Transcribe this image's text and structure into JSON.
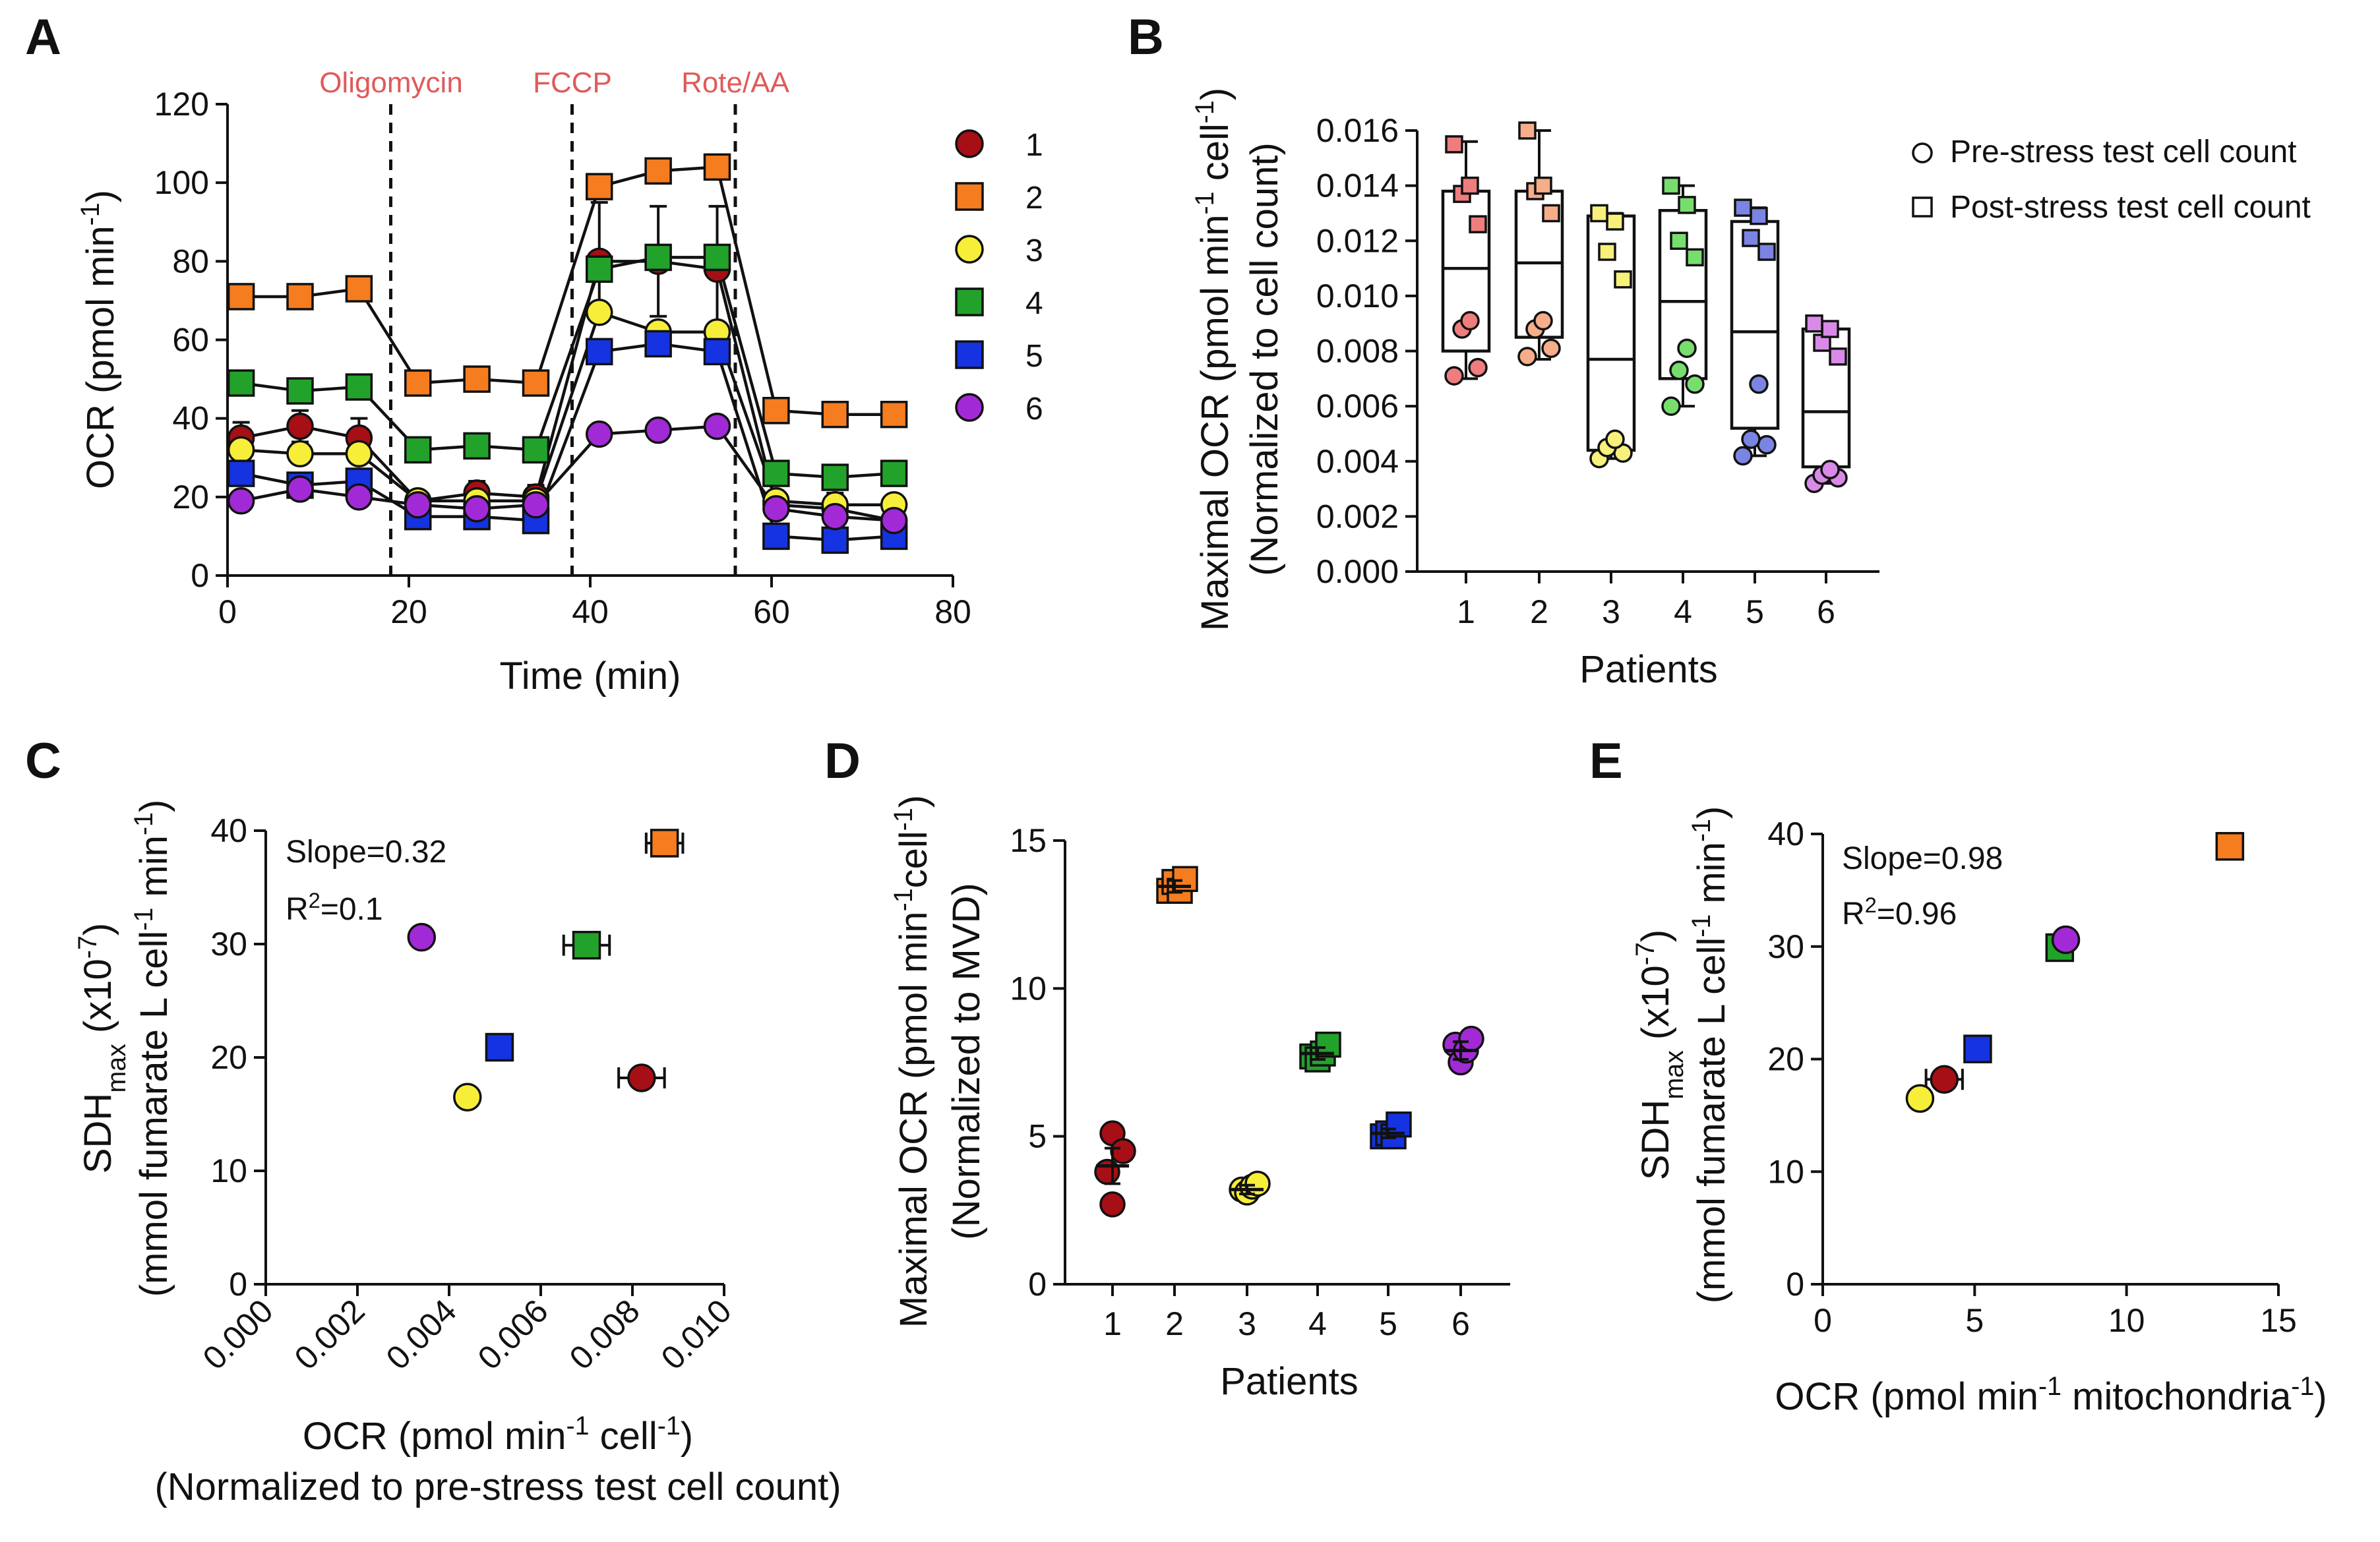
{
  "colors": {
    "1": "#a50f15",
    "2": "#f57c1f",
    "3": "#f7ee3a",
    "4": "#22a22a",
    "5": "#1533e0",
    "6": "#a12ad6",
    "light1": "#ee7d7d",
    "light2": "#f5ad8a",
    "light3": "#f7f07a",
    "light4": "#77de6e",
    "light5": "#7b84e3",
    "light6": "#d98ae8",
    "treatment": "#e05a5a"
  },
  "chart_data": [
    {
      "id": "A",
      "panel_letter": "A",
      "type": "line",
      "xlabel": "Time (min)",
      "ylabel_main": "OCR (pmol min",
      "ylabel_sup": "-1",
      "ylabel_end": ")",
      "xlim": [
        0,
        80
      ],
      "ylim": [
        0,
        120
      ],
      "xticks": [
        0,
        20,
        40,
        60,
        80
      ],
      "yticks": [
        0,
        20,
        40,
        60,
        80,
        100,
        120
      ],
      "treatments": [
        {
          "label": "Oligomycin",
          "x": 18
        },
        {
          "label": "FCCP",
          "x": 38
        },
        {
          "label": "Rote/AA",
          "x": 56
        }
      ],
      "x": [
        1.5,
        8,
        14.5,
        21,
        27.5,
        34,
        41,
        47.5,
        54,
        60.5,
        67,
        73.5
      ],
      "series": [
        {
          "name": "1",
          "marker": "circle",
          "values": [
            35,
            38,
            35,
            19,
            21,
            20,
            80,
            80,
            78,
            18,
            17,
            14
          ],
          "err": [
            4,
            4,
            5,
            2,
            3,
            3,
            15,
            14,
            16,
            3,
            4,
            4
          ]
        },
        {
          "name": "2",
          "marker": "square",
          "values": [
            71,
            71,
            73,
            49,
            50,
            49,
            99,
            103,
            104,
            42,
            41,
            41
          ],
          "err": [
            0,
            0,
            0,
            0,
            0,
            0,
            0,
            0,
            0,
            0,
            0,
            0
          ]
        },
        {
          "name": "3",
          "marker": "circle",
          "values": [
            32,
            31,
            31,
            19,
            19,
            19,
            67,
            62,
            62,
            19,
            18,
            18
          ],
          "err": [
            0,
            0,
            0,
            0,
            0,
            0,
            0,
            0,
            0,
            0,
            0,
            0
          ]
        },
        {
          "name": "4",
          "marker": "square",
          "values": [
            49,
            47,
            48,
            32,
            33,
            32,
            78,
            81,
            81,
            26,
            25,
            26
          ],
          "err": [
            0,
            0,
            0,
            0,
            0,
            0,
            0,
            0,
            0,
            0,
            0,
            0
          ]
        },
        {
          "name": "5",
          "marker": "square",
          "values": [
            26,
            23,
            24,
            15,
            15,
            14,
            57,
            59,
            57,
            10,
            9,
            10
          ],
          "err": [
            0,
            0,
            0,
            0,
            0,
            0,
            0,
            0,
            0,
            0,
            0,
            0
          ]
        },
        {
          "name": "6",
          "marker": "circle",
          "values": [
            19,
            22,
            20,
            18,
            17,
            18,
            36,
            37,
            38,
            17,
            15,
            14
          ],
          "err": [
            0,
            0,
            0,
            0,
            0,
            0,
            0,
            0,
            0,
            0,
            0,
            0
          ]
        }
      ]
    },
    {
      "id": "B",
      "panel_letter": "B",
      "type": "box",
      "xlabel": "Patients",
      "ylabel1_main": "Maximal OCR (pmol min",
      "ylabel1_sup1": "-1",
      "ylabel1_mid": " cell",
      "ylabel1_sup2": "-1",
      "ylabel1_end": ")",
      "ylabel2": "(Normalized to cell count)",
      "ylim": [
        0,
        0.016
      ],
      "yticks": [
        "0.000",
        "0.002",
        "0.004",
        "0.006",
        "0.008",
        "0.010",
        "0.012",
        "0.014",
        "0.016"
      ],
      "categories": [
        "1",
        "2",
        "3",
        "4",
        "5",
        "6"
      ],
      "legend": [
        "Pre-stress test cell count",
        "Post-stress test cell count"
      ],
      "boxes": [
        {
          "min": 0.007,
          "q1": 0.008,
          "median": 0.011,
          "q3": 0.0138,
          "max": 0.0156
        },
        {
          "min": 0.0077,
          "q1": 0.0085,
          "median": 0.0112,
          "q3": 0.0138,
          "max": 0.016
        },
        {
          "min": 0.0041,
          "q1": 0.0044,
          "median": 0.0077,
          "q3": 0.0129,
          "max": 0.013
        },
        {
          "min": 0.006,
          "q1": 0.007,
          "median": 0.0098,
          "q3": 0.0131,
          "max": 0.014
        },
        {
          "min": 0.0042,
          "q1": 0.0052,
          "median": 0.0087,
          "q3": 0.0127,
          "max": 0.0132
        },
        {
          "min": 0.0032,
          "q1": 0.0038,
          "median": 0.0058,
          "q3": 0.0088,
          "max": 0.009
        }
      ],
      "pre_points": [
        [
          0.0071,
          0.0074,
          0.0088,
          0.0091
        ],
        [
          0.0078,
          0.0081,
          0.0088,
          0.0091
        ],
        [
          0.0041,
          0.0043,
          0.0045,
          0.0048
        ],
        [
          0.006,
          0.0068,
          0.0073,
          0.0081
        ],
        [
          0.0042,
          0.0046,
          0.0048,
          0.0068
        ],
        [
          0.0032,
          0.0034,
          0.0035,
          0.0037
        ]
      ],
      "post_points": [
        [
          0.0126,
          0.0137,
          0.014,
          0.0155
        ],
        [
          0.013,
          0.0138,
          0.014,
          0.016
        ],
        [
          0.0106,
          0.0116,
          0.0127,
          0.013
        ],
        [
          0.0114,
          0.012,
          0.0133,
          0.014
        ],
        [
          0.0116,
          0.0121,
          0.0129,
          0.0132
        ],
        [
          0.0078,
          0.0083,
          0.0088,
          0.009
        ]
      ]
    },
    {
      "id": "C",
      "panel_letter": "C",
      "type": "scatter",
      "xlabel1_main": "OCR (pmol min",
      "xlabel1_sup1": "-1",
      "xlabel1_mid": " cell",
      "xlabel1_sup2": "-1",
      "xlabel1_end": ")",
      "xlabel2": "(Normalized to pre-stress test cell count)",
      "ylabel1_main": "SDH",
      "ylabel1_sub": "max",
      "ylabel1_mid": " (x10",
      "ylabel1_sup": "-7",
      "ylabel1_end": ")",
      "ylabel2_main": "(mmol fumarate L cell",
      "ylabel2_sup1": "-1",
      "ylabel2_mid": " min",
      "ylabel2_sup2": "-1",
      "ylabel2_end": ")",
      "xlim": [
        0,
        0.01
      ],
      "ylim": [
        0,
        40
      ],
      "xticks": [
        "0.000",
        "0.002",
        "0.004",
        "0.006",
        "0.008",
        "0.010"
      ],
      "yticks": [
        0,
        10,
        20,
        30,
        40
      ],
      "slope_text": "Slope=0.32",
      "r2_main": "R",
      "r2_sup": "2",
      "r2_end": "=0.1",
      "points": [
        {
          "patient": "1",
          "marker": "circle",
          "x": 0.0082,
          "y": 18.2,
          "xerr": 0.0005
        },
        {
          "patient": "2",
          "marker": "square",
          "x": 0.0087,
          "y": 38.9,
          "xerr": 0.0004
        },
        {
          "patient": "3",
          "marker": "circle",
          "x": 0.0044,
          "y": 16.5,
          "xerr": 0.0
        },
        {
          "patient": "4",
          "marker": "square",
          "x": 0.007,
          "y": 29.9,
          "xerr": 0.0005
        },
        {
          "patient": "5",
          "marker": "square",
          "x": 0.0051,
          "y": 20.9,
          "xerr": 0.0002
        },
        {
          "patient": "6",
          "marker": "circle",
          "x": 0.0034,
          "y": 30.6,
          "xerr": 0.0
        }
      ]
    },
    {
      "id": "D",
      "panel_letter": "D",
      "type": "scatter",
      "xlabel": "Patients",
      "ylabel1_main": "Maximal OCR (pmol min",
      "ylabel1_sup1": "-1",
      "ylabel1_mid": "cell",
      "ylabel1_sup2": "-1",
      "ylabel1_end": ")",
      "ylabel2": "(Normalized to MVD)",
      "ylim": [
        0,
        15
      ],
      "yticks": [
        0,
        5,
        10,
        15
      ],
      "categories": [
        "1",
        "2",
        "3",
        "4",
        "5",
        "6"
      ],
      "groups": [
        {
          "marker": "circle",
          "mean": 4.0,
          "err": 0.6,
          "points": [
            [
              -0.1,
              3.8
            ],
            [
              0.0,
              5.1
            ],
            [
              0.2,
              4.5
            ],
            [
              0.0,
              2.7
            ]
          ]
        },
        {
          "marker": "square",
          "mean": 13.45,
          "err": 0.2,
          "points": [
            [
              -0.1,
              13.3
            ],
            [
              0.0,
              13.6
            ],
            [
              0.1,
              13.3
            ],
            [
              0.2,
              13.7
            ]
          ]
        },
        {
          "marker": "circle",
          "mean": 3.2,
          "err": 0.15,
          "points": [
            [
              -0.1,
              3.2
            ],
            [
              0.0,
              3.1
            ],
            [
              0.1,
              3.3
            ],
            [
              0.2,
              3.4
            ]
          ]
        },
        {
          "marker": "square",
          "mean": 7.8,
          "err": 0.2,
          "points": [
            [
              -0.1,
              7.7
            ],
            [
              0.0,
              7.6
            ],
            [
              0.1,
              7.8
            ],
            [
              0.2,
              8.1
            ]
          ]
        },
        {
          "marker": "square",
          "mean": 5.1,
          "err": 0.15,
          "points": [
            [
              -0.1,
              5.0
            ],
            [
              0.0,
              5.1
            ],
            [
              0.1,
              5.0
            ],
            [
              0.2,
              5.4
            ]
          ]
        },
        {
          "marker": "circle",
          "mean": 7.9,
          "err": 0.3,
          "points": [
            [
              -0.1,
              8.1
            ],
            [
              0.0,
              7.5
            ],
            [
              0.1,
              7.9
            ],
            [
              0.2,
              8.3
            ]
          ]
        }
      ]
    },
    {
      "id": "E",
      "panel_letter": "E",
      "type": "scatter",
      "xlabel_main": "OCR (pmol min",
      "xlabel_sup1": "-1",
      "xlabel_mid": " mitochondria",
      "xlabel_sup2": "-1",
      "xlabel_end": ")",
      "ylabel1_main": "SDH",
      "ylabel1_sub": "max",
      "ylabel1_mid": " (x10",
      "ylabel1_sup": "-7",
      "ylabel1_end": ")",
      "ylabel2_main": "(mmol fumarate L cell",
      "ylabel2_sup1": "-1",
      "ylabel2_mid": " min",
      "ylabel2_sup2": "-1",
      "ylabel2_end": ")",
      "xlim": [
        0,
        15
      ],
      "ylim": [
        0,
        40
      ],
      "xticks": [
        0,
        5,
        10,
        15
      ],
      "yticks": [
        0,
        10,
        20,
        30,
        40
      ],
      "slope_text": "Slope=0.98",
      "r2_main": "R",
      "r2_sup": "2",
      "r2_end": "=0.96",
      "points": [
        {
          "patient": "1",
          "marker": "circle",
          "x": 4.0,
          "y": 18.2,
          "xerr": 0.6
        },
        {
          "patient": "2",
          "marker": "square",
          "x": 13.4,
          "y": 38.9,
          "xerr": 0.0
        },
        {
          "patient": "3",
          "marker": "circle",
          "x": 3.2,
          "y": 16.5,
          "xerr": 0.0
        },
        {
          "patient": "4",
          "marker": "square",
          "x": 7.8,
          "y": 29.9,
          "xerr": 0.0
        },
        {
          "patient": "5",
          "marker": "square",
          "x": 5.1,
          "y": 20.9,
          "xerr": 0.0
        },
        {
          "patient": "6",
          "marker": "circle",
          "x": 8.0,
          "y": 30.6,
          "xerr": 0.0
        }
      ]
    }
  ]
}
